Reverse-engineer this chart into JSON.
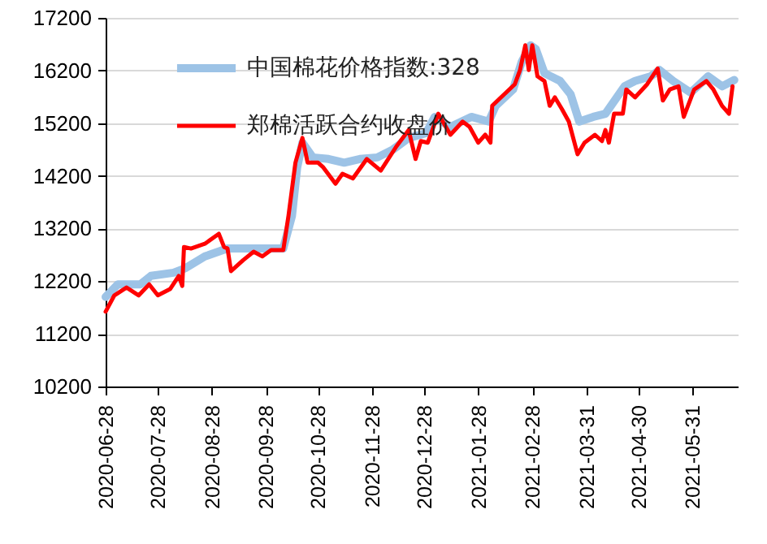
{
  "chart_data": {
    "type": "line",
    "series": [
      {
        "name": "中国棉花价格指数:328",
        "color": "#9dc3e6",
        "x": [
          "2020-06-28",
          "2020-07-05",
          "2020-07-18",
          "2020-07-24",
          "2020-08-06",
          "2020-08-13",
          "2020-08-24",
          "2020-09-06",
          "2020-09-24",
          "2020-10-08",
          "2020-10-13",
          "2020-10-16",
          "2020-10-19",
          "2020-10-25",
          "2020-11-03",
          "2020-11-12",
          "2020-11-21",
          "2020-12-01",
          "2020-12-10",
          "2020-12-19",
          "2020-12-29",
          "2021-01-03",
          "2021-01-12",
          "2021-01-24",
          "2021-02-03",
          "2021-02-07",
          "2021-02-17",
          "2021-02-22",
          "2021-02-27",
          "2021-03-02",
          "2021-03-07",
          "2021-03-16",
          "2021-03-22",
          "2021-03-27",
          "2021-04-04",
          "2021-04-11",
          "2021-04-22",
          "2021-04-28",
          "2021-05-07",
          "2021-05-12",
          "2021-05-20",
          "2021-05-30",
          "2021-06-09",
          "2021-06-17",
          "2021-06-24"
        ],
        "values": [
          11900,
          12140,
          12140,
          12300,
          12360,
          12450,
          12670,
          12820,
          12820,
          12820,
          13440,
          14360,
          14830,
          14550,
          14520,
          14450,
          14520,
          14550,
          14700,
          14920,
          15010,
          15320,
          15130,
          15320,
          15230,
          15530,
          15840,
          16370,
          16680,
          16610,
          16150,
          16000,
          15750,
          15230,
          15320,
          15380,
          15900,
          16000,
          16090,
          16210,
          16000,
          15780,
          16090,
          15900,
          16020
        ]
      },
      {
        "name": "郑棉活跃合约收盘价",
        "color": "#ff0000",
        "x": [
          "2020-06-28",
          "2020-07-03",
          "2020-07-10",
          "2020-07-17",
          "2020-07-23",
          "2020-07-28",
          "2020-08-04",
          "2020-08-09",
          "2020-08-11",
          "2020-08-12",
          "2020-08-16",
          "2020-08-24",
          "2020-09-01",
          "2020-09-04",
          "2020-09-06",
          "2020-09-08",
          "2020-09-15",
          "2020-09-21",
          "2020-09-26",
          "2020-10-01",
          "2020-10-08",
          "2020-10-11",
          "2020-10-15",
          "2020-10-19",
          "2020-10-22",
          "2020-10-28",
          "2020-10-31",
          "2020-11-07",
          "2020-11-11",
          "2020-11-17",
          "2020-11-25",
          "2020-12-03",
          "2020-12-12",
          "2020-12-19",
          "2020-12-23",
          "2020-12-26",
          "2020-12-30",
          "2021-01-05",
          "2021-01-12",
          "2021-01-19",
          "2021-01-23",
          "2021-01-28",
          "2021-02-01",
          "2021-02-04",
          "2021-02-05",
          "2021-02-10",
          "2021-02-18",
          "2021-02-21",
          "2021-02-24",
          "2021-02-26",
          "2021-02-28",
          "2021-03-03",
          "2021-03-07",
          "2021-03-10",
          "2021-03-13",
          "2021-03-17",
          "2021-03-21",
          "2021-03-26",
          "2021-03-30",
          "2021-04-05",
          "2021-04-09",
          "2021-04-11",
          "2021-04-13",
          "2021-04-16",
          "2021-04-21",
          "2021-04-23",
          "2021-04-28",
          "2021-05-05",
          "2021-05-11",
          "2021-05-14",
          "2021-05-18",
          "2021-05-23",
          "2021-05-26",
          "2021-06-01",
          "2021-06-08",
          "2021-06-12",
          "2021-06-17",
          "2021-06-21",
          "2021-06-23"
        ],
        "values": [
          11620,
          11930,
          12080,
          11930,
          12140,
          11930,
          12050,
          12300,
          12110,
          12850,
          12820,
          12910,
          13100,
          12850,
          12820,
          12390,
          12600,
          12760,
          12670,
          12790,
          12790,
          13440,
          14450,
          14920,
          14450,
          14450,
          14360,
          14050,
          14240,
          14150,
          14520,
          14300,
          14760,
          15070,
          14520,
          14860,
          14830,
          15380,
          14980,
          15230,
          15130,
          14830,
          14980,
          14830,
          15530,
          15690,
          15940,
          16210,
          16680,
          16210,
          16680,
          16090,
          16000,
          15530,
          15690,
          15470,
          15230,
          14610,
          14830,
          14980,
          14860,
          15070,
          14830,
          15380,
          15380,
          15840,
          15690,
          15940,
          16240,
          15630,
          15840,
          15900,
          15320,
          15840,
          16000,
          15840,
          15530,
          15380,
          15900
        ]
      }
    ],
    "xlim": [
      "2020-06-28",
      "2021-06-26"
    ],
    "xticks": [
      "2020-06-28",
      "2020-07-28",
      "2020-08-28",
      "2020-09-28",
      "2020-10-28",
      "2020-11-28",
      "2020-12-28",
      "2021-01-28",
      "2021-02-28",
      "2021-03-31",
      "2021-04-30",
      "2021-05-31"
    ],
    "ylim": [
      10200,
      17200
    ],
    "yticks": [
      10200,
      11200,
      12200,
      13200,
      14200,
      15200,
      16200,
      17200
    ],
    "grid": "y",
    "legend": "top left"
  }
}
